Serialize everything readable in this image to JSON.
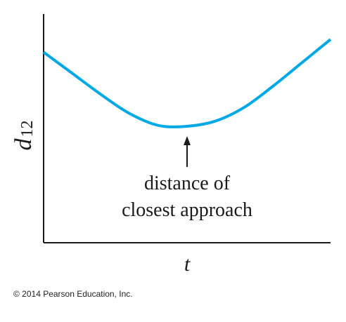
{
  "chart_data": {
    "type": "line",
    "title": "",
    "xlabel": "t",
    "ylabel": "d",
    "ylabel_subscript": "12",
    "x_ticks": [],
    "y_ticks": [],
    "grid": false,
    "series": [
      {
        "color": "#00a9e6",
        "x": [
          0,
          0.1,
          0.2,
          0.3,
          0.4,
          0.5,
          0.6,
          0.7,
          0.8,
          0.9,
          1.0
        ],
        "y": [
          0.9,
          0.8,
          0.7,
          0.61,
          0.554,
          0.55,
          0.575,
          0.64,
          0.74,
          0.85,
          0.96
        ]
      }
    ],
    "xlim": [
      0,
      1
    ],
    "ylim": [
      0,
      1.08
    ],
    "annotation": {
      "line1": "distance of",
      "line2": "closest approach",
      "target_x": 0.5,
      "target_y": 0.55
    }
  },
  "footer": {
    "copyright": "© 2014 Pearson Education, Inc."
  }
}
